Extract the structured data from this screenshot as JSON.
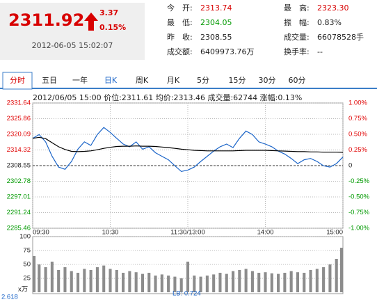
{
  "quote": {
    "price": "2311.92",
    "change": "3.37",
    "change_pct": "0.15%",
    "time": "2012-06-05 15:02:07"
  },
  "stats": [
    {
      "label": "今　开:",
      "value": "2313.74"
    },
    {
      "label": "最　高:",
      "value": "2323.30"
    },
    {
      "label": "最　低:",
      "value": "2304.05"
    },
    {
      "label": "振　幅:",
      "value": "0.83%"
    },
    {
      "label": "昨　收:",
      "value": "2308.55"
    },
    {
      "label": "成交量:",
      "value": "66078528手"
    },
    {
      "label": "成交额:",
      "value": "6409973.76万"
    },
    {
      "label": "换手率:",
      "value": "--"
    }
  ],
  "tabs": [
    "分时",
    "五日",
    "一年",
    "日K",
    "周K",
    "月K",
    "5分",
    "15分",
    "30分",
    "60分"
  ],
  "info_bar": "2012/06/05 15:00  价位:2311.61  均价:2313.46  成交量:62744  涨幅:0.13%",
  "chart_data": [
    {
      "type": "line",
      "x": [
        0,
        5,
        10,
        15,
        20,
        25,
        30,
        35,
        40,
        45,
        50,
        55,
        60,
        65,
        70,
        75,
        80,
        85,
        90,
        95,
        100,
        105,
        110,
        115,
        120,
        125,
        130,
        135,
        140,
        145,
        150,
        155,
        160,
        165,
        170,
        175,
        180,
        185,
        190,
        195,
        200,
        205,
        210,
        215,
        220,
        225,
        230,
        235,
        240
      ],
      "xlim": [
        0,
        240
      ],
      "xticks": [
        {
          "value": 0,
          "label": "09:30"
        },
        {
          "value": 60,
          "label": "10:30"
        },
        {
          "value": 120,
          "label": "11:30/13:00"
        },
        {
          "value": 180,
          "label": "14:00"
        },
        {
          "value": 240,
          "label": "15:00"
        }
      ],
      "ylim": [
        2285.46,
        2331.64
      ],
      "yticks": [
        2331.64,
        2325.86,
        2320.09,
        2314.32,
        2308.55,
        2302.78,
        2297.01,
        2291.24,
        2285.46
      ],
      "y2lim": [
        -1,
        1
      ],
      "y2ticks": [
        {
          "value": 1,
          "label": "1.00%"
        },
        {
          "value": 0.75,
          "label": "0.75%"
        },
        {
          "value": 0.5,
          "label": "0.50%"
        },
        {
          "value": 0.25,
          "label": "0.25%"
        },
        0,
        {
          "value": -0.25,
          "label": "-0.25%"
        },
        {
          "value": -0.5,
          "label": "-0.50%"
        },
        {
          "value": -0.75,
          "label": "-0.75%"
        },
        {
          "value": -1,
          "label": "-1.00%"
        }
      ],
      "baseline": 2308.55,
      "grid": true,
      "up_color": "#e00000",
      "down_color": "#009900",
      "series": [
        {
          "color": "#1a64c8",
          "values": [
            2318.6,
            2320.0,
            2317.3,
            2312.0,
            2308.0,
            2307.2,
            2310.1,
            2314.6,
            2317.3,
            2316.0,
            2320.0,
            2322.6,
            2320.8,
            2318.6,
            2316.5,
            2315.5,
            2317.3,
            2314.6,
            2315.5,
            2313.3,
            2312.0,
            2310.7,
            2308.5,
            2306.4,
            2306.9,
            2308.0,
            2310.1,
            2312.0,
            2313.9,
            2315.5,
            2316.5,
            2315.2,
            2318.6,
            2321.3,
            2320.0,
            2317.3,
            2316.5,
            2315.5,
            2313.9,
            2312.8,
            2311.2,
            2309.3,
            2310.7,
            2311.2,
            2310.1,
            2308.5,
            2308.0,
            2309.3,
            2311.7
          ]
        },
        {
          "color": "#000000",
          "values": [
            2318.6,
            2319.0,
            2318.5,
            2317.0,
            2315.5,
            2314.5,
            2313.8,
            2313.7,
            2313.8,
            2314.0,
            2314.4,
            2314.9,
            2315.3,
            2315.6,
            2315.7,
            2315.7,
            2315.8,
            2315.7,
            2315.7,
            2315.6,
            2315.4,
            2315.2,
            2314.9,
            2314.6,
            2314.4,
            2314.2,
            2314.1,
            2314.0,
            2314.0,
            2314.0,
            2314.0,
            2314.0,
            2314.1,
            2314.2,
            2314.2,
            2314.2,
            2314.2,
            2314.1,
            2314.0,
            2313.9,
            2313.8,
            2313.7,
            2313.7,
            2313.6,
            2313.6,
            2313.5,
            2313.5,
            2313.5,
            2313.46
          ]
        }
      ]
    },
    {
      "type": "bar",
      "x": [
        0,
        5,
        10,
        15,
        20,
        25,
        30,
        35,
        40,
        45,
        50,
        55,
        60,
        65,
        70,
        75,
        80,
        85,
        90,
        95,
        100,
        105,
        110,
        115,
        120,
        125,
        130,
        135,
        140,
        145,
        150,
        155,
        160,
        165,
        170,
        175,
        180,
        185,
        190,
        195,
        200,
        205,
        210,
        215,
        220,
        225,
        230,
        235,
        240
      ],
      "xlim": [
        0,
        240
      ],
      "ylim": [
        0,
        100
      ],
      "yticks": [
        25,
        50,
        75,
        100
      ],
      "values": [
        65,
        50,
        45,
        55,
        40,
        45,
        38,
        35,
        42,
        40,
        45,
        48,
        42,
        40,
        35,
        38,
        36,
        33,
        35,
        30,
        32,
        30,
        28,
        25,
        55,
        30,
        28,
        30,
        32,
        35,
        33,
        38,
        40,
        42,
        38,
        35,
        36,
        34,
        33,
        35,
        38,
        36,
        35,
        40,
        42,
        45,
        50,
        60,
        80
      ],
      "color": "#8c8c8c",
      "unit_label": "x万",
      "scale_label": "2.618",
      "annotation": "LB: 0.724"
    }
  ]
}
